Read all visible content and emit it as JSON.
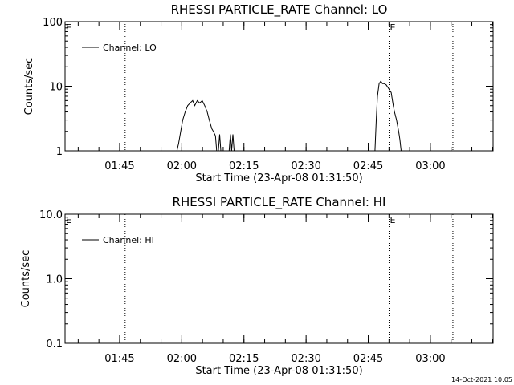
{
  "footer": {
    "timestamp": "14-Oct-2021 10:05"
  },
  "chart_data": [
    {
      "type": "line",
      "title": "RHESSI PARTICLE_RATE Channel: LO",
      "xlabel": "Start Time (23-Apr-08 01:31:50)",
      "ylabel": "Counts/sec",
      "yscale": "log",
      "ylim": [
        1,
        100
      ],
      "xlim_minutes": [
        0,
        103.3
      ],
      "x_units": "minutes since 01:31:50",
      "xticks": [
        {
          "t": 13.17,
          "label": "01:45"
        },
        {
          "t": 28.17,
          "label": "02:00"
        },
        {
          "t": 43.17,
          "label": "02:15"
        },
        {
          "t": 58.17,
          "label": "02:30"
        },
        {
          "t": 73.17,
          "label": "02:45"
        },
        {
          "t": 88.17,
          "label": "03:00"
        }
      ],
      "yticks": [
        {
          "v": 1,
          "label": "1"
        },
        {
          "v": 10,
          "label": "10"
        },
        {
          "v": 100,
          "label": "100"
        }
      ],
      "legend": {
        "position": "top-left",
        "label": "Channel: LO"
      },
      "event_lines": [
        {
          "t": 14.5,
          "marker": ""
        },
        {
          "t": 78.2,
          "marker": "E"
        },
        {
          "t": 93.6,
          "marker": ""
        }
      ],
      "corner_marker": "E",
      "series": [
        {
          "name": "Channel: LO",
          "segments": [
            [
              [
                27.0,
                1.0
              ],
              [
                27.4,
                1.3
              ],
              [
                27.9,
                2.0
              ],
              [
                28.4,
                3.0
              ],
              [
                29.0,
                4.0
              ],
              [
                29.6,
                5.0
              ],
              [
                30.2,
                5.5
              ],
              [
                30.8,
                6.0
              ],
              [
                31.3,
                5.0
              ],
              [
                31.9,
                6.0
              ],
              [
                32.5,
                5.5
              ],
              [
                33.1,
                6.0
              ],
              [
                33.7,
                5.0
              ],
              [
                34.3,
                4.0
              ],
              [
                34.8,
                3.0
              ],
              [
                35.4,
                2.2
              ],
              [
                35.8,
                2.0
              ],
              [
                36.3,
                1.7
              ],
              [
                36.6,
                1.0
              ]
            ],
            [
              [
                37.0,
                1.0
              ],
              [
                37.3,
                1.8
              ],
              [
                37.6,
                1.0
              ]
            ],
            [
              [
                39.6,
                1.0
              ],
              [
                39.9,
                1.8
              ],
              [
                40.2,
                1.0
              ],
              [
                40.5,
                1.8
              ],
              [
                40.8,
                1.0
              ]
            ],
            [
              [
                74.8,
                1.0
              ],
              [
                75.1,
                3.0
              ],
              [
                75.4,
                7.0
              ],
              [
                75.8,
                11.0
              ],
              [
                76.2,
                12.0
              ],
              [
                76.6,
                11.0
              ],
              [
                77.0,
                11.0
              ],
              [
                77.5,
                10.5
              ],
              [
                78.2,
                9.0
              ],
              [
                78.7,
                8.0
              ],
              [
                79.2,
                5.0
              ],
              [
                79.5,
                4.0
              ],
              [
                80.0,
                3.0
              ],
              [
                80.5,
                2.0
              ],
              [
                80.8,
                1.5
              ],
              [
                81.1,
                1.0
              ]
            ]
          ]
        }
      ]
    },
    {
      "type": "line",
      "title": "RHESSI PARTICLE_RATE Channel: HI",
      "xlabel": "Start Time (23-Apr-08 01:31:50)",
      "ylabel": "Counts/sec",
      "yscale": "log",
      "ylim": [
        0.1,
        10
      ],
      "xlim_minutes": [
        0,
        103.3
      ],
      "x_units": "minutes since 01:31:50",
      "xticks": [
        {
          "t": 13.17,
          "label": "01:45"
        },
        {
          "t": 28.17,
          "label": "02:00"
        },
        {
          "t": 43.17,
          "label": "02:15"
        },
        {
          "t": 58.17,
          "label": "02:30"
        },
        {
          "t": 73.17,
          "label": "02:45"
        },
        {
          "t": 88.17,
          "label": "03:00"
        }
      ],
      "yticks": [
        {
          "v": 0.1,
          "label": "0.1"
        },
        {
          "v": 1,
          "label": "1.0"
        },
        {
          "v": 10,
          "label": "10.0"
        }
      ],
      "legend": {
        "position": "top-left",
        "label": "Channel: HI"
      },
      "event_lines": [
        {
          "t": 14.5,
          "marker": ""
        },
        {
          "t": 78.2,
          "marker": "E"
        },
        {
          "t": 93.6,
          "marker": ""
        }
      ],
      "corner_marker": "E",
      "series": [
        {
          "name": "Channel: HI",
          "segments": []
        }
      ]
    }
  ]
}
